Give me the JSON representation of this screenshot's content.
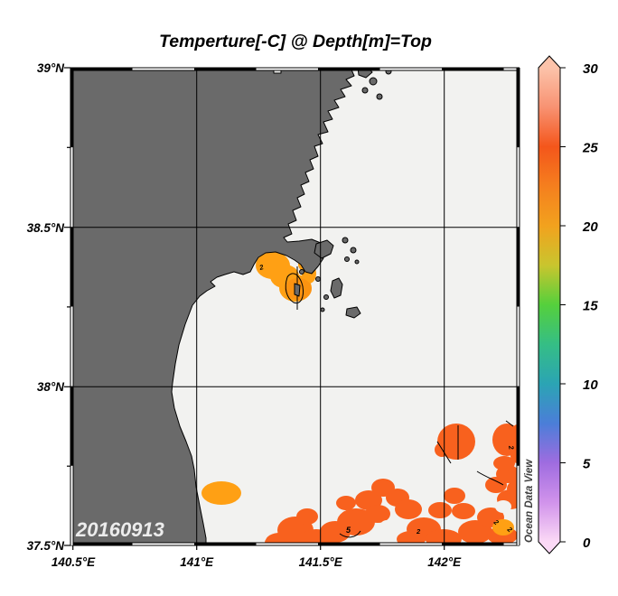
{
  "title": "Temperture[-C] @ Depth[m]=Top",
  "date_label": "20160913",
  "watermark": "Ocean Data View",
  "axes": {
    "lat_ticks": [
      "39°N",
      "38.5°N",
      "38°N",
      "37.5°N"
    ],
    "lon_ticks": [
      "140.5°E",
      "141°E",
      "141.5°E",
      "142°E"
    ]
  },
  "colorbar": {
    "min": 0,
    "max": 30,
    "tick_labels": [
      "30",
      "25",
      "20",
      "15",
      "10",
      "5",
      "0"
    ],
    "stops": [
      {
        "value": 30,
        "color": "#FCC3AA"
      },
      {
        "value": 27.5,
        "color": "#F89272"
      },
      {
        "value": 25,
        "color": "#F4561B"
      },
      {
        "value": 22.5,
        "color": "#F57F1E"
      },
      {
        "value": 20,
        "color": "#F2A21E"
      },
      {
        "value": 17.5,
        "color": "#C9C52E"
      },
      {
        "value": 15,
        "color": "#55D03C"
      },
      {
        "value": 12.5,
        "color": "#35BE85"
      },
      {
        "value": 10,
        "color": "#2BA4B4"
      },
      {
        "value": 7.5,
        "color": "#4B7ED8"
      },
      {
        "value": 5,
        "color": "#9F6CE0"
      },
      {
        "value": 2.5,
        "color": "#D193EB"
      },
      {
        "value": 0,
        "color": "#FBD9F6"
      }
    ]
  },
  "map_colors": {
    "land": "#6A6A6A",
    "sea": "#F2F2F0",
    "warm_patch": "#FFA014",
    "hot_patch": "#F8611E"
  },
  "contour_labels": [
    "2",
    "5",
    "2",
    "2",
    "2",
    "2"
  ],
  "chart_data": {
    "type": "heatmap",
    "title": "Temperture[-C] @ Depth[m]=Top",
    "variable": "Temperature",
    "unit_label": "[-C]",
    "depth_level": "Top",
    "date": "20160913",
    "x_axis": {
      "label_ticks": [
        "140.5°E",
        "141°E",
        "141.5°E",
        "142°E"
      ],
      "range_deg_e": [
        140.5,
        142.3
      ]
    },
    "y_axis": {
      "label_ticks": [
        "39°N",
        "38.5°N",
        "38°N",
        "37.5°N"
      ],
      "range_deg_n": [
        37.5,
        39.0
      ]
    },
    "colorbar": {
      "range": [
        0,
        30
      ],
      "tick_step": 5,
      "style": "rainbow (pink-violet-blue-teal-green-orange-red-salmon)"
    },
    "land_masked": true,
    "background_sea_note": "most of mapped sea has no shading (near-white)",
    "warm_regions": [
      {
        "name": "bay-warm-patch",
        "lon_deg_e": [
          141.24,
          141.49
        ],
        "lat_deg_n": [
          38.26,
          38.41
        ],
        "approx_value_c": 21,
        "contour_label": "2"
      },
      {
        "name": "coastal-warm-spot",
        "lon_deg_e": [
          141.05,
          141.17
        ],
        "lat_deg_n": [
          37.64,
          37.7
        ],
        "approx_value_c": 21
      },
      {
        "name": "southeast-warm-field",
        "lon_deg_e": [
          141.3,
          142.3
        ],
        "lat_deg_n": [
          37.5,
          37.93
        ],
        "approx_value_c": 25,
        "contour_labels": [
          "25",
          "2"
        ]
      }
    ]
  }
}
